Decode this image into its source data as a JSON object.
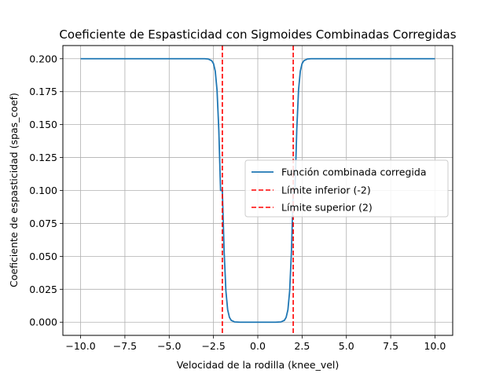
{
  "chart_data": {
    "type": "line",
    "title": "Coeficiente de Espasticidad con Sigmoides Combinadas Corregidas",
    "xlabel": "Velocidad de la rodilla (knee_vel)",
    "ylabel": "Coeficiente de espasticidad (spas_coef)",
    "xlim": [
      -11,
      11
    ],
    "ylim": [
      -0.01,
      0.21
    ],
    "xticks": [
      -10,
      -7.5,
      -5,
      -2.5,
      0,
      2.5,
      5,
      7.5,
      10
    ],
    "xtick_labels": [
      "−10.0",
      "−7.5",
      "−5.0",
      "−2.5",
      "0.0",
      "2.5",
      "5.0",
      "7.5",
      "10.0"
    ],
    "yticks": [
      0,
      0.025,
      0.05,
      0.075,
      0.1,
      0.125,
      0.15,
      0.175,
      0.2
    ],
    "ytick_labels": [
      "0.000",
      "0.025",
      "0.050",
      "0.075",
      "0.100",
      "0.125",
      "0.150",
      "0.175",
      "0.200"
    ],
    "grid": true,
    "legend_position": "center-right",
    "series": [
      {
        "name": "Función combinada corregida",
        "color": "#1f77b4",
        "style": "solid",
        "x": [
          -10,
          -6,
          -3,
          -2.8,
          -2.6,
          -2.5,
          -2.4,
          -2.3,
          -2.2,
          -2.1,
          -2.0,
          -1.9,
          -1.8,
          -1.7,
          -1.6,
          -1.5,
          -1.3,
          -1.0,
          0,
          1.0,
          1.3,
          1.5,
          1.6,
          1.7,
          1.8,
          1.9,
          2.0,
          2.1,
          2.2,
          2.3,
          2.4,
          2.5,
          2.6,
          2.8,
          3,
          6,
          10
        ],
        "y": [
          0.2,
          0.2,
          0.2,
          0.1998,
          0.1985,
          0.1963,
          0.1906,
          0.1762,
          0.1462,
          0.1,
          0.1,
          0.0538,
          0.0238,
          0.0094,
          0.0037,
          0.0014,
          0.0002,
          0,
          0,
          0,
          0.0002,
          0.0014,
          0.0037,
          0.0094,
          0.0238,
          0.0538,
          0.1,
          0.1,
          0.1462,
          0.1762,
          0.1906,
          0.1963,
          0.1985,
          0.1998,
          0.2,
          0.2,
          0.2
        ]
      },
      {
        "name": "Límite inferior (-2)",
        "color": "#ff0000",
        "style": "dashed",
        "vline": -2
      },
      {
        "name": "Límite superior (2)",
        "color": "#ff0000",
        "style": "dashed",
        "vline": 2
      }
    ]
  }
}
